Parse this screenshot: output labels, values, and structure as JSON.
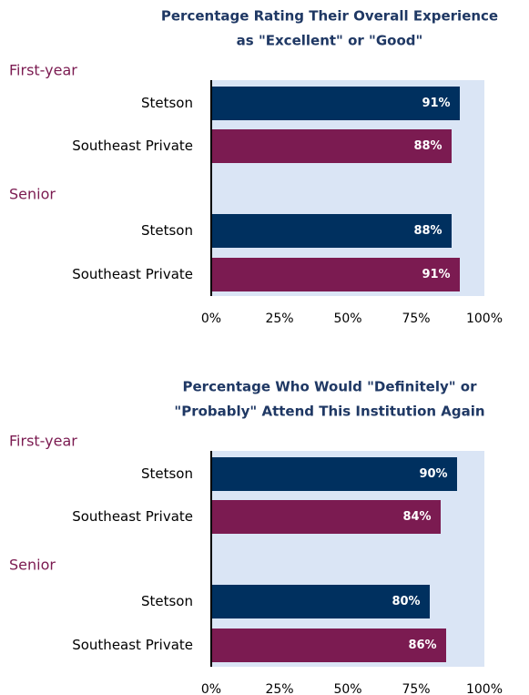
{
  "chart_data": [
    {
      "type": "bar",
      "orientation": "horizontal",
      "title": [
        "Percentage Rating Their Overall Experience",
        "as \"Excellent\" or \"Good\""
      ],
      "groups": [
        {
          "name": "First-year",
          "categories": [
            "Stetson",
            "Southeast Private"
          ],
          "values": [
            91,
            88
          ],
          "value_labels": [
            "91%",
            "88%"
          ]
        },
        {
          "name": "Senior",
          "categories": [
            "Stetson",
            "Southeast Private"
          ],
          "values": [
            88,
            91
          ],
          "value_labels": [
            "88%",
            "91%"
          ]
        }
      ],
      "colors": [
        "#00305f",
        "#7b1b51"
      ],
      "xlim": [
        0,
        100
      ],
      "xticks": [
        {
          "value": 0,
          "label": "0%"
        },
        {
          "value": 25,
          "label": "25%"
        },
        {
          "value": 50,
          "label": "50%"
        },
        {
          "value": 75,
          "label": "75%"
        },
        {
          "value": 100,
          "label": "100%"
        }
      ]
    },
    {
      "type": "bar",
      "orientation": "horizontal",
      "title": [
        "Percentage Who Would \"Definitely\" or",
        "\"Probably\" Attend This Institution Again"
      ],
      "groups": [
        {
          "name": "First-year",
          "categories": [
            "Stetson",
            "Southeast Private"
          ],
          "values": [
            90,
            84
          ],
          "value_labels": [
            "90%",
            "84%"
          ]
        },
        {
          "name": "Senior",
          "categories": [
            "Stetson",
            "Southeast Private"
          ],
          "values": [
            80,
            86
          ],
          "value_labels": [
            "80%",
            "86%"
          ]
        }
      ],
      "colors": [
        "#00305f",
        "#7b1b51"
      ],
      "xlim": [
        0,
        100
      ],
      "xticks": [
        {
          "value": 0,
          "label": "0%"
        },
        {
          "value": 25,
          "label": "25%"
        },
        {
          "value": 50,
          "label": "50%"
        },
        {
          "value": 75,
          "label": "75%"
        },
        {
          "value": 100,
          "label": "100%"
        }
      ]
    }
  ]
}
